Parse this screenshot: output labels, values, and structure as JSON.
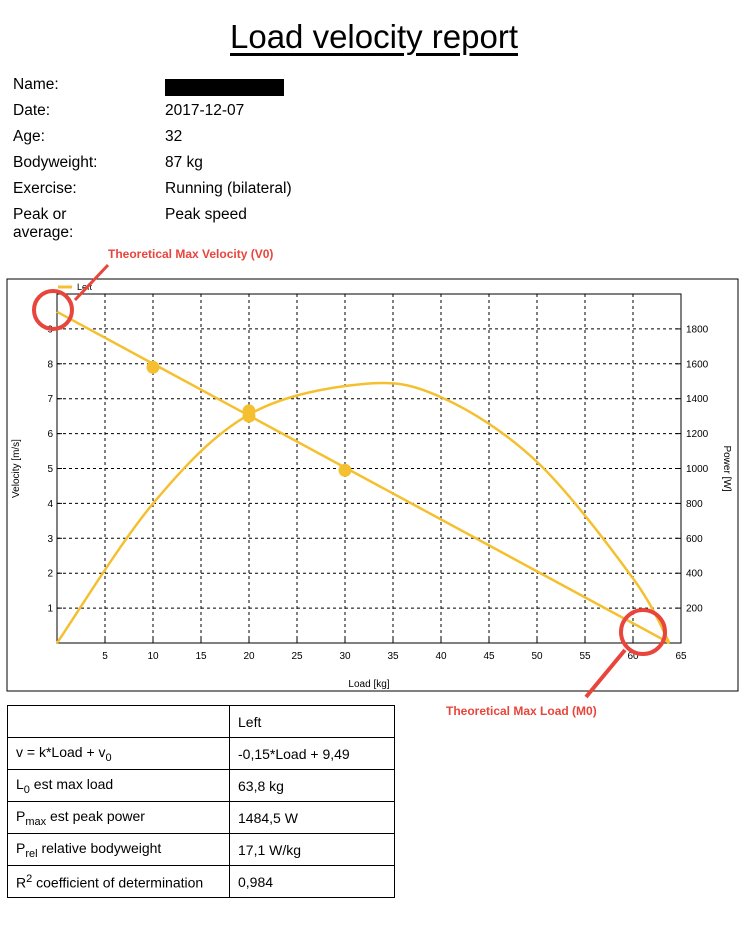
{
  "report": {
    "title": "Load velocity report",
    "info": [
      {
        "label": "Name:",
        "value": "",
        "redacted": true
      },
      {
        "label": "Date:",
        "value": "2017-12-07"
      },
      {
        "label": "Age:",
        "value": "32"
      },
      {
        "label": "Bodyweight:",
        "value": "87 kg"
      },
      {
        "label": "Exercise:",
        "value": "Running (bilateral)"
      },
      {
        "label": "Peak or average:",
        "value": "Peak speed"
      }
    ]
  },
  "annotations": {
    "v0": "Theoretical Max Velocity (V0)",
    "m0": "Theoretical Max Load (M0)"
  },
  "chart_data": {
    "type": "line",
    "xlabel": "Load [kg]",
    "ylabel": "Velocity [m/s]",
    "y2label": "Power [W]",
    "xlim": [
      0,
      65
    ],
    "ylim": [
      0,
      10
    ],
    "y2lim": [
      0,
      2000
    ],
    "xticks": [
      5,
      10,
      15,
      20,
      25,
      30,
      35,
      40,
      45,
      50,
      55,
      60,
      65
    ],
    "yticks": [
      1,
      2,
      3,
      4,
      5,
      6,
      7,
      8,
      9
    ],
    "y2ticks": [
      200,
      400,
      600,
      800,
      1000,
      1200,
      1400,
      1600,
      1800
    ],
    "grid": true,
    "legend": {
      "position": "top-left",
      "entries": [
        "Left"
      ]
    },
    "color": "#f5c030",
    "series": [
      {
        "name": "Left",
        "kind": "points",
        "x": [
          10,
          20,
          20,
          30
        ],
        "y": [
          7.9,
          6.65,
          6.5,
          4.95
        ]
      },
      {
        "name": "Left",
        "kind": "velocity-fit",
        "k": -0.15,
        "v0": 9.49,
        "x": [
          0,
          63.8
        ],
        "y": [
          9.49,
          0
        ]
      },
      {
        "name": "Left",
        "kind": "power",
        "x": [
          0,
          10,
          20,
          31.9,
          40,
          50,
          60,
          63.8
        ],
        "y": [
          0,
          799,
          1309,
          1484.5,
          1409,
          1038,
          370,
          0
        ]
      }
    ]
  },
  "stats_table": {
    "header": "Left",
    "rows": [
      {
        "label": "v = k*Load + v",
        "sub": "0",
        "pre_sub": "",
        "sup": "",
        "suffix": "",
        "value": "-0,15*Load + 9,49"
      },
      {
        "label": "L",
        "sub": "0",
        "suffix": " est max load",
        "value": "63,8 kg"
      },
      {
        "label": "P",
        "sub": "max",
        "suffix": " est peak power",
        "value": "1484,5 W"
      },
      {
        "label": "P",
        "sub": "rel",
        "suffix": " relative bodyweight",
        "value": "17,1 W/kg"
      },
      {
        "label": "R",
        "sup": "2",
        "suffix": " coefficient of determination",
        "value": "0,984"
      }
    ]
  }
}
